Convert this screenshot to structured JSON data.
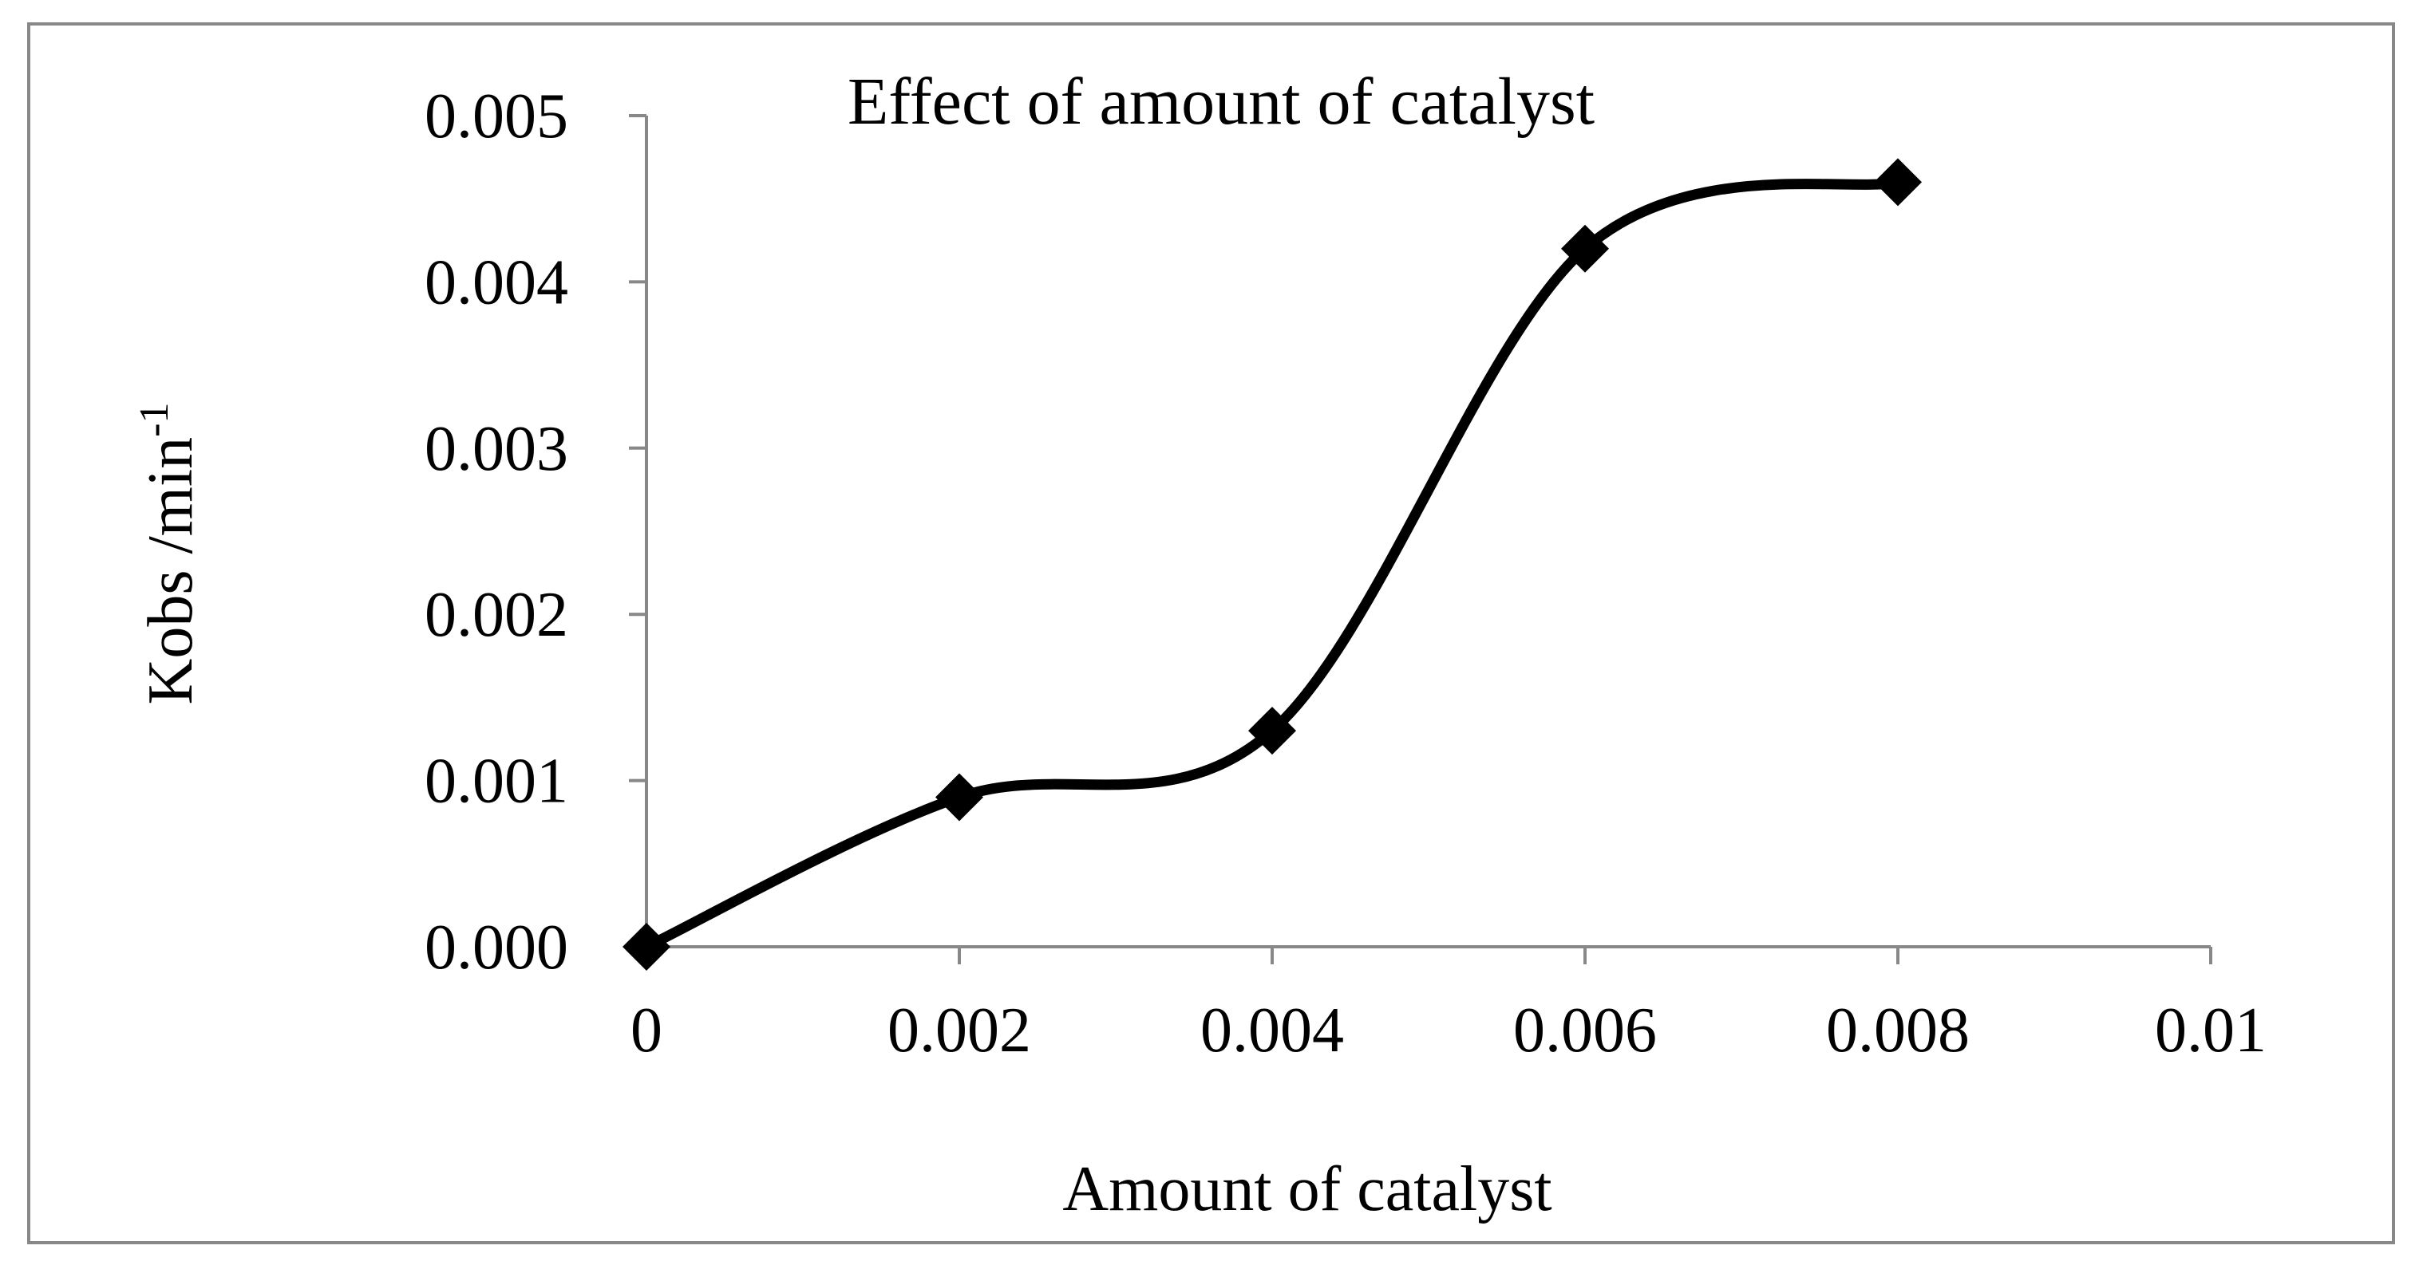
{
  "chart_data": {
    "type": "line",
    "title": "Effect of amount of catalyst",
    "xlabel": "Amount of catalyst",
    "ylabel": {
      "base": "Kobs /min",
      "superscript": "-1"
    },
    "xlim": [
      0,
      0.01
    ],
    "ylim": [
      0,
      0.005
    ],
    "x_tick_labels": [
      "0",
      "0.002",
      "0.004",
      "0.006",
      "0.008",
      "0.01"
    ],
    "y_tick_labels": [
      "0.000",
      "0.001",
      "0.002",
      "0.003",
      "0.004",
      "0.005"
    ],
    "grid": false,
    "legend": "none",
    "line_style": "smoothed",
    "marker": "diamond",
    "series": [
      {
        "name": "Kobs",
        "color": "#000000",
        "x": [
          0,
          0.002,
          0.004,
          0.006,
          0.008
        ],
        "y": [
          0.0,
          0.0009,
          0.0013,
          0.0042,
          0.0046
        ]
      }
    ]
  },
  "colors": {
    "axis": "#888888",
    "frame": "#888888",
    "series": "#000000",
    "background": "#ffffff"
  }
}
